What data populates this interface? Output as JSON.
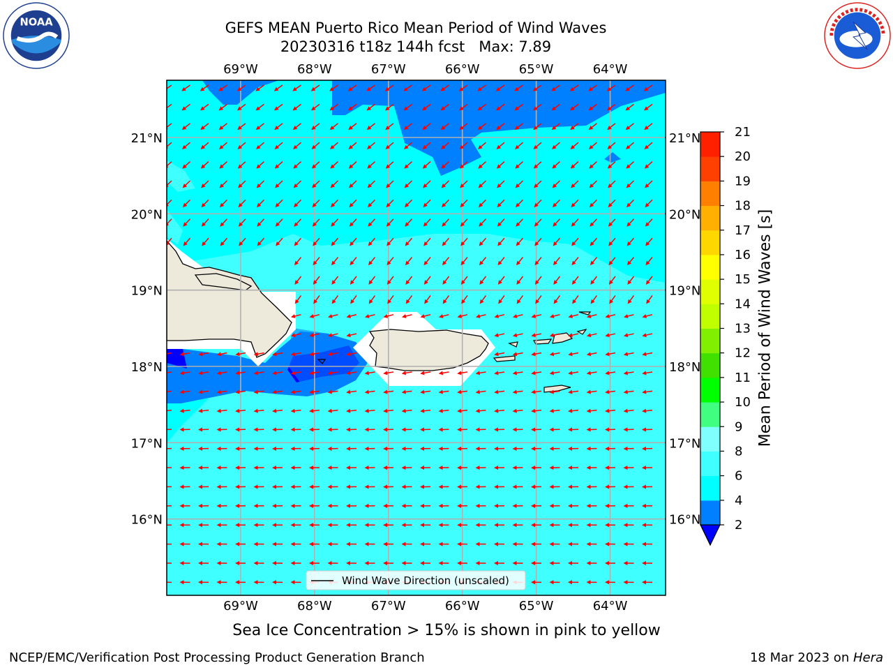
{
  "header": {
    "title_line1": "GEFS MEAN Puerto Rico Mean Period of Wind Waves",
    "title_line2": "20230316 t18z 144h fcst   Max: 7.89"
  },
  "logos": {
    "left": {
      "name": "noaa-logo",
      "text": "NOAA",
      "ring_text": "NATIONAL OCEANIC AND ATMOSPHERIC ADMINISTRATION · U.S. DEPARTMENT OF COMMERCE"
    },
    "right": {
      "name": "nws-logo",
      "ring_text": "NATIONAL WEATHER SERVICE"
    }
  },
  "map": {
    "lon_labels": [
      "69°W",
      "68°W",
      "67°W",
      "66°W",
      "65°W",
      "64°W"
    ],
    "lat_labels": [
      "21°N",
      "20°N",
      "19°N",
      "18°N",
      "17°N",
      "16°N"
    ],
    "lon_range": [
      -70.0,
      -63.25
    ],
    "lat_range": [
      15.0,
      21.75
    ],
    "legend_label": "Wind Wave Direction (unscaled)",
    "arrow_color": "#ff0000",
    "land_color": "#eeeadb",
    "regions": [
      "Hispaniola",
      "Puerto Rico",
      "Virgin Islands"
    ]
  },
  "colorbar": {
    "label": "Mean Period of Wind Waves [s]",
    "ticks": [
      "2",
      "4",
      "6",
      "8",
      "9",
      "10",
      "11",
      "12",
      "13",
      "14",
      "15",
      "16",
      "17",
      "18",
      "19",
      "20",
      "21"
    ],
    "colors": [
      "#0000ff",
      "#0080ff",
      "#00ffff",
      "#40ffff",
      "#80ffff",
      "#40ff80",
      "#00ff00",
      "#40e000",
      "#80f000",
      "#c0ff00",
      "#e0ff00",
      "#ffff00",
      "#ffd700",
      "#ffb000",
      "#ff8000",
      "#ff4000",
      "#ff2000",
      "#ff0000"
    ],
    "extend": "min"
  },
  "footer": {
    "subtitle": "Sea Ice Concentration > 15% is shown in pink to yellow",
    "left": "NCEP/EMC/Verification Post Processing Product Generation Branch",
    "right_date": "18 Mar 2023 on ",
    "right_machine": "Hera"
  }
}
